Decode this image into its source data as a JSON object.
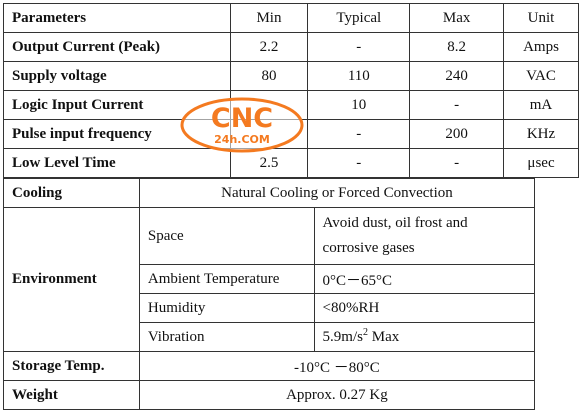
{
  "specs": {
    "header": {
      "param": "Parameters",
      "min": "Min",
      "typ": "Typical",
      "max": "Max",
      "unit": "Unit"
    },
    "rows": [
      {
        "param": "Output Current (Peak)",
        "min": "2.2",
        "typ": "-",
        "max": "8.2",
        "unit": "Amps"
      },
      {
        "param": "Supply voltage",
        "min": "80",
        "typ": "110",
        "max": "240",
        "unit": "VAC"
      },
      {
        "param": "Logic Input Current",
        "min": "",
        "typ": "10",
        "max": "-",
        "unit": "mA"
      },
      {
        "param": "Pulse input frequency",
        "min": "",
        "typ": "-",
        "max": "200",
        "unit": "KHz"
      },
      {
        "param": "Low Level Time",
        "min": "2.5",
        "typ": "-",
        "max": "-",
        "unit": "μsec"
      }
    ]
  },
  "env": {
    "cooling_label": "Cooling",
    "cooling_value": "Natural Cooling or Forced Convection",
    "environment_label": "Environment",
    "space_label": "Space",
    "space_value_1": "Avoid dust, oil frost and",
    "space_value_2": "corrosive gases",
    "ambient_label": "Ambient Temperature",
    "ambient_value": "0°C－65°C",
    "humidity_label": "Humidity",
    "humidity_value": "<80%RH",
    "vibration_label": "Vibration",
    "vibration_value": "5.9m/s",
    "vibration_sup": "2",
    "vibration_tail": " Max",
    "storage_label": "Storage Temp.",
    "storage_value": "-10°C －80°C",
    "weight_label": "Weight",
    "weight_value": "Approx. 0.27 Kg"
  },
  "watermark": {
    "line1": "CNC",
    "line2": "24h.COM",
    "color": "#f47a20"
  }
}
